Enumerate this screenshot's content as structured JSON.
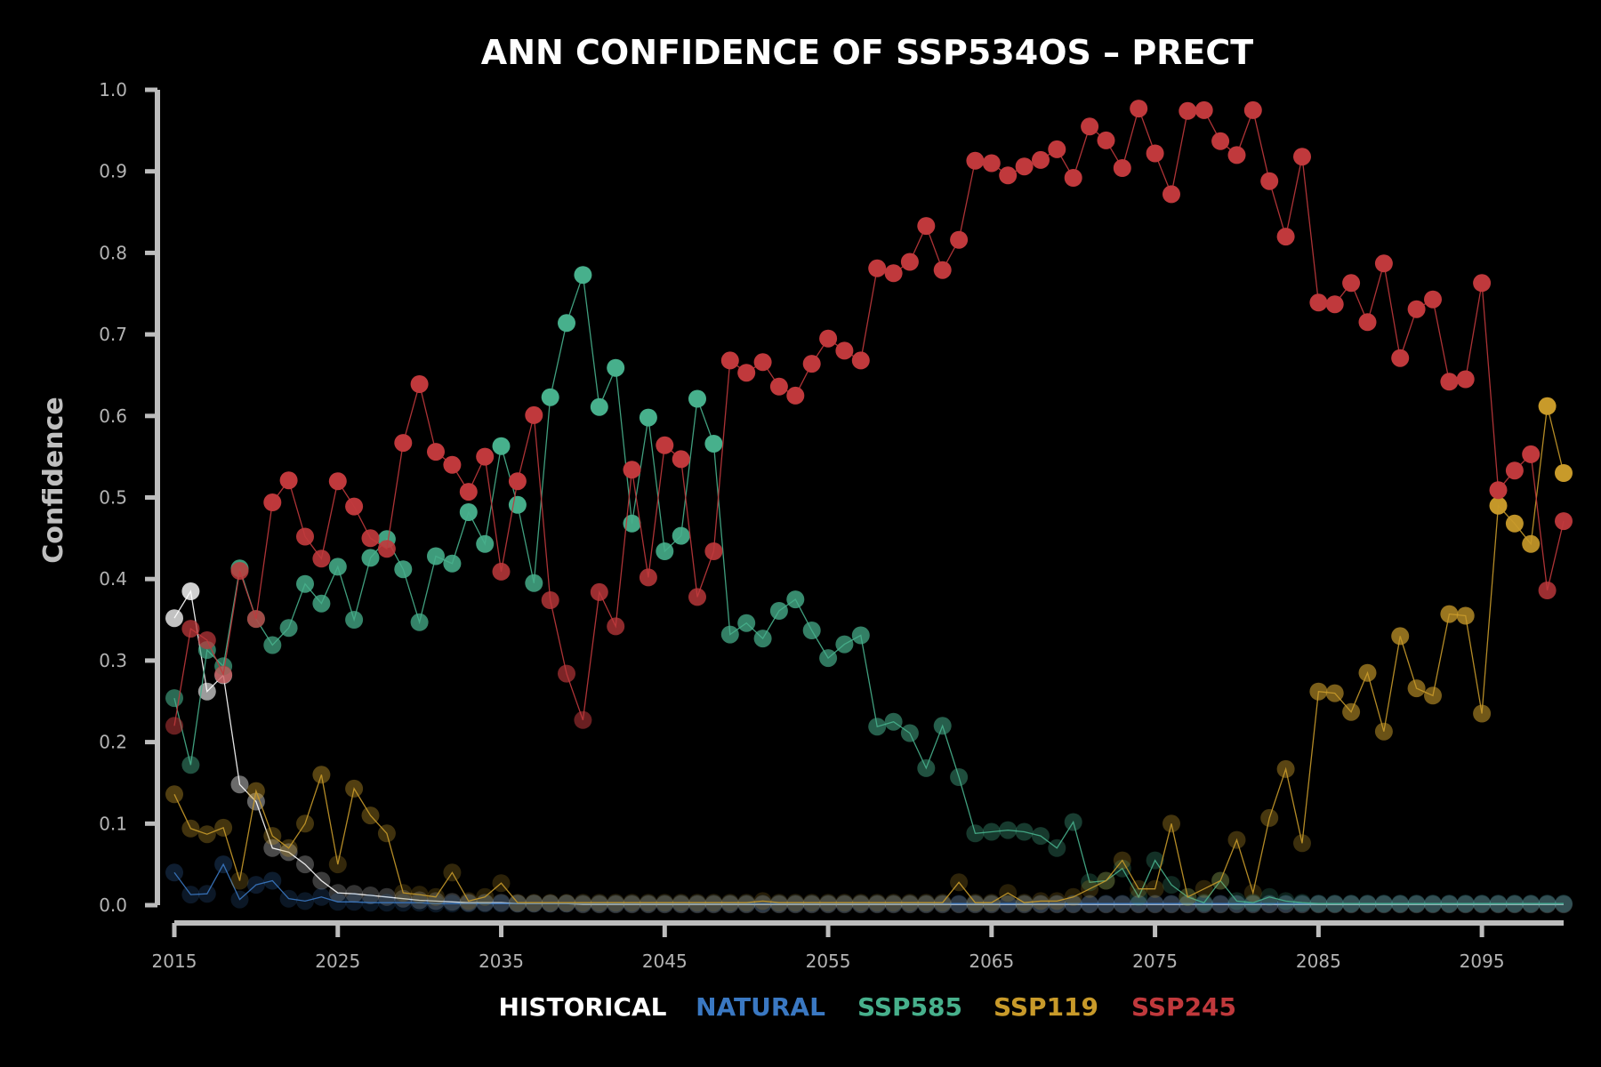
{
  "chart_data": {
    "type": "line",
    "title": "ANN CONFIDENCE OF SSP534OS – PRECT",
    "xlabel": "",
    "ylabel": "Confidence",
    "xlim": [
      2015,
      2100
    ],
    "ylim": [
      0,
      1.0
    ],
    "x_start": 2015,
    "xticks": [
      2015,
      2025,
      2035,
      2045,
      2055,
      2065,
      2075,
      2085,
      2095
    ],
    "yticks": [
      "0.0",
      "0.1",
      "0.2",
      "0.3",
      "0.4",
      "0.5",
      "0.6",
      "0.7",
      "0.8",
      "0.9",
      "1.0"
    ],
    "grid": false,
    "legend_position": "bottom",
    "colors": {
      "axis": "#bdbdbd",
      "background": "#000000"
    },
    "series": [
      {
        "name": "HISTORICAL",
        "color": "#ffffff",
        "values": [
          0.352,
          0.385,
          0.262,
          0.282,
          0.148,
          0.127,
          0.07,
          0.065,
          0.05,
          0.03,
          0.015,
          0.014,
          0.012,
          0.01,
          0.008,
          0.006,
          0.005,
          0.004,
          0.003,
          0.003,
          0.003,
          0.002,
          0.002,
          0.002,
          0.002,
          0.001,
          0.001,
          0.001,
          0.001,
          0.001,
          0.001,
          0.001,
          0.001,
          0.001,
          0.001,
          0.001,
          0.001,
          0.001,
          0.001,
          0.001,
          0.001,
          0.001,
          0.001,
          0.001,
          0.001,
          0.001,
          0.001,
          0.001,
          0.001,
          0.001,
          0.001,
          0.001,
          0.001,
          0.001,
          0.001,
          0.001,
          0.001,
          0.001,
          0.001,
          0.001,
          0.001,
          0.001,
          0.001,
          0.001,
          0.001,
          0.001,
          0.001,
          0.001,
          0.001,
          0.001,
          0.001,
          0.001,
          0.001,
          0.001,
          0.001,
          0.001,
          0.001,
          0.001,
          0.001,
          0.001,
          0.001,
          0.001,
          0.001,
          0.001,
          0.001,
          0.001
        ]
      },
      {
        "name": "NATURAL",
        "color": "#3a78c2",
        "values": [
          0.04,
          0.013,
          0.014,
          0.05,
          0.007,
          0.025,
          0.03,
          0.008,
          0.005,
          0.01,
          0.004,
          0.004,
          0.003,
          0.003,
          0.003,
          0.003,
          0.002,
          0.002,
          0.002,
          0.002,
          0.002,
          0.002,
          0.002,
          0.002,
          0.002,
          0.002,
          0.002,
          0.002,
          0.002,
          0.002,
          0.002,
          0.002,
          0.002,
          0.002,
          0.002,
          0.002,
          0.002,
          0.002,
          0.002,
          0.002,
          0.002,
          0.002,
          0.002,
          0.002,
          0.002,
          0.002,
          0.002,
          0.002,
          0.002,
          0.002,
          0.002,
          0.002,
          0.002,
          0.002,
          0.002,
          0.002,
          0.002,
          0.002,
          0.002,
          0.002,
          0.002,
          0.002,
          0.002,
          0.002,
          0.002,
          0.002,
          0.002,
          0.002,
          0.002,
          0.002,
          0.002,
          0.002,
          0.002,
          0.002,
          0.002,
          0.002,
          0.002,
          0.002,
          0.002,
          0.002,
          0.002,
          0.002,
          0.002,
          0.002,
          0.002,
          0.002
        ]
      },
      {
        "name": "SSP585",
        "color": "#47b08c",
        "values": [
          0.254,
          0.172,
          0.313,
          0.293,
          0.413,
          0.351,
          0.319,
          0.34,
          0.394,
          0.37,
          0.415,
          0.35,
          0.426,
          0.449,
          0.412,
          0.347,
          0.428,
          0.419,
          0.482,
          0.443,
          0.563,
          0.491,
          0.395,
          0.623,
          0.714,
          0.773,
          0.611,
          0.659,
          0.468,
          0.598,
          0.434,
          0.453,
          0.621,
          0.566,
          0.332,
          0.346,
          0.327,
          0.361,
          0.375,
          0.337,
          0.303,
          0.32,
          0.331,
          0.219,
          0.225,
          0.211,
          0.168,
          0.22,
          0.157,
          0.088,
          0.09,
          0.092,
          0.09,
          0.085,
          0.07,
          0.102,
          0.028,
          0.03,
          0.045,
          0.01,
          0.055,
          0.025,
          0.01,
          0.003,
          0.03,
          0.005,
          0.003,
          0.01,
          0.005,
          0.003,
          0.002,
          0.002,
          0.002,
          0.002,
          0.002,
          0.002,
          0.002,
          0.002,
          0.002,
          0.002,
          0.002,
          0.002,
          0.002,
          0.002,
          0.002,
          0.002
        ]
      },
      {
        "name": "SSP119",
        "color": "#c89a2a",
        "values": [
          0.136,
          0.094,
          0.087,
          0.095,
          0.03,
          0.14,
          0.085,
          0.07,
          0.1,
          0.16,
          0.05,
          0.143,
          0.11,
          0.088,
          0.015,
          0.013,
          0.01,
          0.04,
          0.005,
          0.01,
          0.027,
          0.003,
          0.003,
          0.003,
          0.003,
          0.003,
          0.003,
          0.003,
          0.003,
          0.003,
          0.003,
          0.003,
          0.003,
          0.003,
          0.003,
          0.003,
          0.005,
          0.003,
          0.003,
          0.003,
          0.003,
          0.003,
          0.003,
          0.003,
          0.003,
          0.003,
          0.003,
          0.003,
          0.028,
          0.003,
          0.003,
          0.015,
          0.003,
          0.005,
          0.005,
          0.01,
          0.02,
          0.03,
          0.055,
          0.02,
          0.02,
          0.1,
          0.01,
          0.02,
          0.03,
          0.08,
          0.015,
          0.107,
          0.167,
          0.076,
          0.262,
          0.26,
          0.237,
          0.285,
          0.213,
          0.33,
          0.266,
          0.257,
          0.357,
          0.355,
          0.235,
          0.49,
          0.468,
          0.443,
          0.612,
          0.53
        ]
      },
      {
        "name": "SSP245",
        "color": "#c0393c",
        "values": [
          0.22,
          0.339,
          0.325,
          0.283,
          0.41,
          0.351,
          0.494,
          0.521,
          0.452,
          0.425,
          0.52,
          0.489,
          0.45,
          0.437,
          0.567,
          0.639,
          0.556,
          0.54,
          0.507,
          0.55,
          0.409,
          0.52,
          0.601,
          0.374,
          0.284,
          0.227,
          0.384,
          0.342,
          0.534,
          0.402,
          0.564,
          0.547,
          0.378,
          0.434,
          0.668,
          0.653,
          0.666,
          0.636,
          0.625,
          0.664,
          0.695,
          0.68,
          0.668,
          0.781,
          0.775,
          0.789,
          0.833,
          0.779,
          0.816,
          0.913,
          0.91,
          0.895,
          0.906,
          0.914,
          0.927,
          0.892,
          0.955,
          0.938,
          0.904,
          0.977,
          0.922,
          0.872,
          0.974,
          0.975,
          0.937,
          0.92,
          0.975,
          0.888,
          0.82,
          0.918,
          0.739,
          0.737,
          0.763,
          0.715,
          0.787,
          0.671,
          0.731,
          0.743,
          0.642,
          0.645,
          0.763,
          0.509,
          0.533,
          0.553,
          0.386,
          0.471
        ]
      }
    ],
    "legend": [
      "HISTORICAL",
      "NATURAL",
      "SSP585",
      "SSP119",
      "SSP245"
    ]
  }
}
